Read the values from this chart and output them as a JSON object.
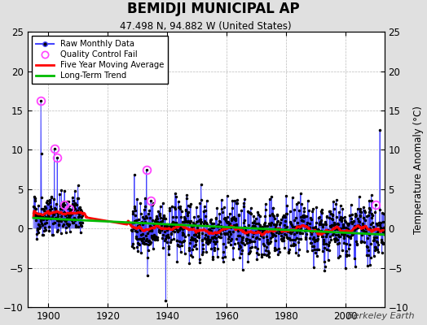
{
  "title": "BEMIDJI MUNICIPAL AP",
  "subtitle": "47.498 N, 94.882 W (United States)",
  "ylabel": "Temperature Anomaly (°C)",
  "watermark": "Berkeley Earth",
  "xlim": [
    1893,
    2013
  ],
  "ylim": [
    -10,
    25
  ],
  "yticks": [
    -10,
    -5,
    0,
    5,
    10,
    15,
    20,
    25
  ],
  "xticks": [
    1900,
    1920,
    1940,
    1960,
    1980,
    2000
  ],
  "start_year": 1895,
  "end_year": 2012,
  "background_color": "#e0e0e0",
  "plot_bg_color": "#ffffff",
  "raw_line_color": "#4444ff",
  "raw_dot_color": "#000000",
  "moving_avg_color": "#ff0000",
  "trend_color": "#00bb00",
  "qc_fail_color": "#ff44ff",
  "seed": 42
}
